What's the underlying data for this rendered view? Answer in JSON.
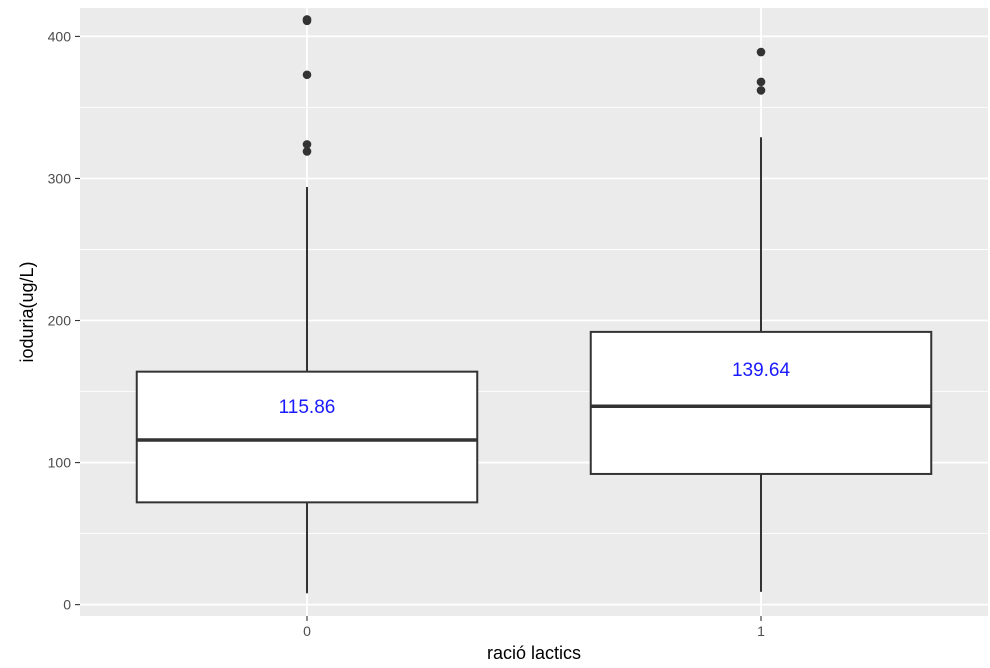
{
  "chart_data": {
    "type": "boxplot",
    "xlabel": "ració lactics",
    "ylabel": "ioduria(ug/L)",
    "ylim": [
      -8,
      420
    ],
    "yticks": [
      0,
      100,
      200,
      300,
      400
    ],
    "ytick_labels": [
      "0",
      "100",
      "200",
      "300",
      "400"
    ],
    "grid": true,
    "categories": [
      "0",
      "1"
    ],
    "boxes": [
      {
        "category": "0",
        "whisker_low": 8,
        "q1": 72,
        "median": 115.86,
        "q3": 164,
        "whisker_high": 294,
        "outliers": [
          319,
          324,
          373,
          411,
          412
        ],
        "median_label": "115.86"
      },
      {
        "category": "1",
        "whisker_low": 9,
        "q1": 92,
        "median": 139.64,
        "q3": 192,
        "whisker_high": 329,
        "outliers": [
          362,
          368,
          389
        ],
        "median_label": "139.64"
      }
    ],
    "colors": {
      "panel_background": "#ebebeb",
      "grid_major": "#ffffff",
      "box_fill": "#ffffff",
      "box_line": "#333333",
      "outlier": "#333333",
      "median_label": "#1a1aff"
    }
  }
}
